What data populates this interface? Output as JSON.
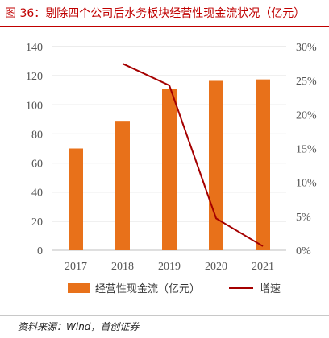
{
  "title": "图 36：剔除四个公司后水务板块经营性现金流状况（亿元）",
  "source": "资料来源：Wind，首创证券",
  "colors": {
    "bar": "#E8711A",
    "line": "#A50000",
    "title": "#C00000",
    "grid": "#D9D9D9"
  },
  "chart_data": {
    "type": "bar",
    "categories": [
      "2017",
      "2018",
      "2019",
      "2020",
      "2021"
    ],
    "series": [
      {
        "name": "经营性现金流（亿元）",
        "type": "bar",
        "axis": "left",
        "values": [
          70,
          89,
          111,
          116.5,
          117.5
        ]
      },
      {
        "name": "增速",
        "type": "line",
        "axis": "right",
        "values": [
          null,
          27.5,
          24.3,
          4.7,
          0.6
        ]
      }
    ],
    "left_axis": {
      "min": 0,
      "max": 140,
      "ticks": [
        "0",
        "20",
        "40",
        "60",
        "80",
        "100",
        "120",
        "140"
      ]
    },
    "right_axis": {
      "min": 0,
      "max": 30,
      "ticks": [
        "0%",
        "5%",
        "10%",
        "15%",
        "20%",
        "25%",
        "30%"
      ]
    },
    "grid": true,
    "legend": "bottom"
  }
}
